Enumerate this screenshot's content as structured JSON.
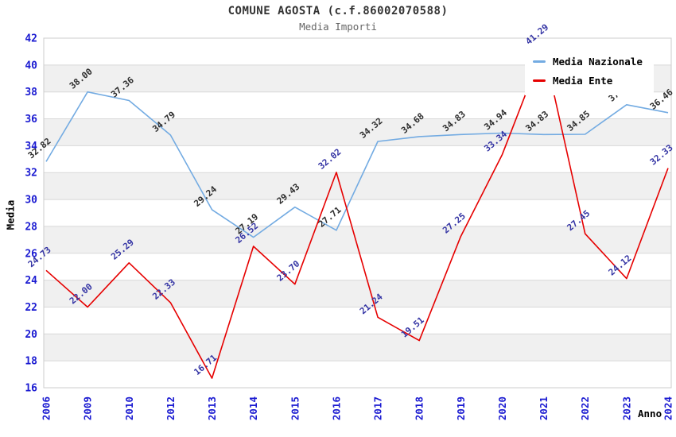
{
  "title": "COMUNE AGOSTA (c.f.86002070588)",
  "subtitle": "Media Importi",
  "legend": {
    "items": [
      {
        "label": "Media Nazionale",
        "color": "#73abe2"
      },
      {
        "label": "Media Ente",
        "color": "#e60000"
      }
    ]
  },
  "axes": {
    "y_title": "Media",
    "x_title": "Anno"
  },
  "chart_data": {
    "type": "line",
    "x": [
      "2006",
      "2009",
      "2010",
      "2012",
      "2013",
      "2014",
      "2015",
      "2016",
      "2017",
      "2018",
      "2019",
      "2020",
      "2021",
      "2022",
      "2023",
      "2024"
    ],
    "series": [
      {
        "name": "Media Nazionale",
        "color": "#73abe2",
        "label_color": "#2e2e2e",
        "values": [
          32.82,
          38.0,
          37.36,
          34.79,
          29.24,
          27.19,
          29.43,
          27.71,
          34.32,
          34.68,
          34.83,
          34.94,
          34.83,
          34.85,
          37.05,
          36.46
        ]
      },
      {
        "name": "Media Ente",
        "color": "#e60000",
        "label_color": "#3434a4",
        "values": [
          24.73,
          22.0,
          25.29,
          22.33,
          16.71,
          26.52,
          23.7,
          32.02,
          21.24,
          19.51,
          27.25,
          33.34,
          41.29,
          27.45,
          24.12,
          32.33
        ]
      }
    ],
    "xlabel": "Anno",
    "ylabel": "Media",
    "ylim": [
      16,
      42
    ],
    "ytick_step": 2,
    "yticks": [
      16,
      18,
      20,
      22,
      24,
      26,
      28,
      30,
      32,
      34,
      36,
      38,
      40,
      42
    ],
    "value_decimals": 2,
    "grid": "horizontal-bands-alternating",
    "legend_position": "top-right",
    "colors": {
      "tick_label": "#1a1ad1",
      "band_fill": "#f0f0f0",
      "grid_line": "#d8d8d8",
      "plot_border": "#cccccc",
      "title": "#333333",
      "subtitle": "#666666"
    }
  }
}
